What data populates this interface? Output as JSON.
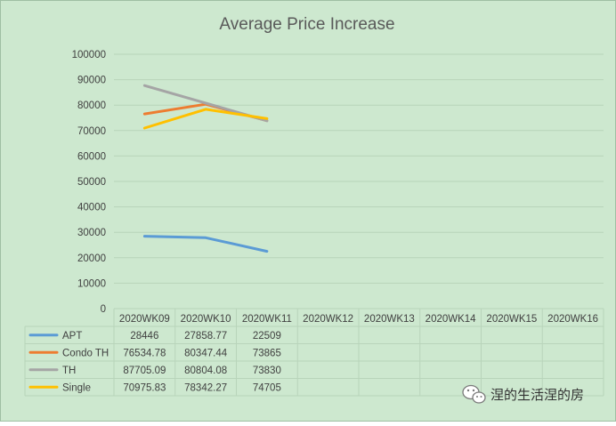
{
  "chart_data": {
    "type": "line",
    "title": "Average Price Increase",
    "xlabel": "",
    "ylabel": "",
    "ylim": [
      0,
      100000
    ],
    "yticks": [
      0,
      10000,
      20000,
      30000,
      40000,
      50000,
      60000,
      70000,
      80000,
      90000,
      100000
    ],
    "grid": true,
    "legend": "bottom-left (data table)",
    "categories": [
      "2020WK09",
      "2020WK10",
      "2020WK11",
      "2020WK12",
      "2020WK13",
      "2020WK14",
      "2020WK15",
      "2020WK16"
    ],
    "series": [
      {
        "name": "APT",
        "color": "#5B9BD5",
        "values": [
          28446,
          27858.77,
          22509,
          null,
          null,
          null,
          null,
          null
        ],
        "labels": [
          "28446",
          "27858.77",
          "22509"
        ]
      },
      {
        "name": "Condo TH",
        "color": "#ED7D31",
        "values": [
          76534.78,
          80347.44,
          73865,
          null,
          null,
          null,
          null,
          null
        ],
        "labels": [
          "76534.78",
          "80347.44",
          "73865"
        ]
      },
      {
        "name": "TH",
        "color": "#A5A5A5",
        "values": [
          87705.09,
          80804.08,
          73830,
          null,
          null,
          null,
          null,
          null
        ],
        "labels": [
          "87705.09",
          "80804.08",
          "73830"
        ]
      },
      {
        "name": "Single",
        "color": "#FFC000",
        "values": [
          70975.83,
          78342.27,
          74705,
          null,
          null,
          null,
          null,
          null
        ],
        "labels": [
          "70975.83",
          "78342.27",
          "74705"
        ]
      }
    ]
  },
  "colors": {
    "background": "#cde8cf",
    "border": "#9fbfa3",
    "gridline": "#b8d4ba",
    "text": "#404040",
    "title": "#595959"
  },
  "watermark": {
    "text": "涅的生活涅的房",
    "icon": "wechat-icon"
  }
}
